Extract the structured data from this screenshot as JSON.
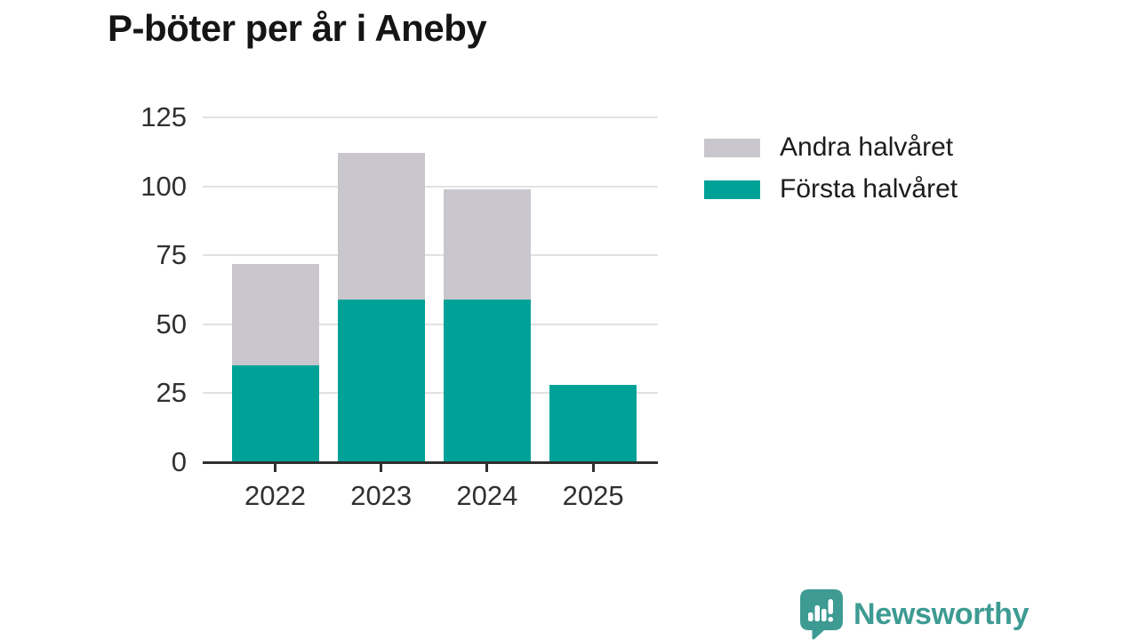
{
  "title": "P-böter per år i Aneby",
  "chart_data": {
    "type": "bar",
    "stacked": true,
    "title": "P-böter per år i Aneby",
    "categories": [
      "2022",
      "2023",
      "2024",
      "2025"
    ],
    "series": [
      {
        "name": "Första halvåret",
        "color": "#00a298",
        "values": [
          35,
          59,
          59,
          28
        ]
      },
      {
        "name": "Andra halvåret",
        "color": "#c9c6ce",
        "values": [
          37,
          53,
          40,
          0
        ]
      }
    ],
    "stack_totals": [
      72,
      112,
      99,
      28
    ],
    "xlabel": "",
    "ylabel": "",
    "ylim": [
      0,
      125
    ],
    "yticks": [
      0,
      25,
      50,
      75,
      100,
      125
    ],
    "grid": true,
    "gridline_color": "#e2e2e2",
    "axis_color": "#2f2f2f",
    "tick_label_color": "#303030",
    "legend_position": "right"
  },
  "legend": {
    "items": [
      {
        "label": "Andra halvåret",
        "color": "#c9c6ce"
      },
      {
        "label": "Första halvåret",
        "color": "#00a298"
      }
    ]
  },
  "branding": {
    "logo_text": "Newsworthy",
    "logo_color": "#3d9b93",
    "logo_icon": "speech-bubble-bar-chart"
  }
}
